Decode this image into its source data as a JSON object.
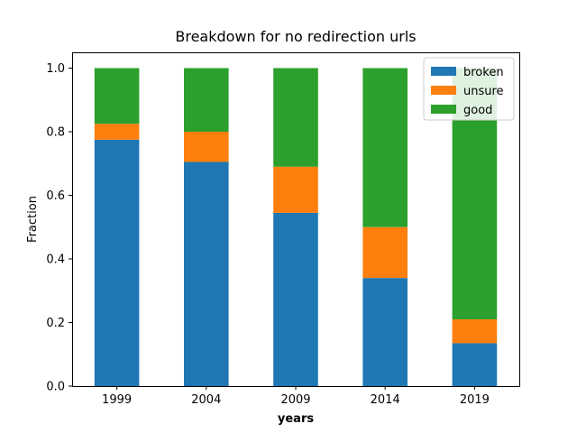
{
  "chart_data": {
    "type": "bar",
    "stacked": true,
    "title": "Breakdown for no redirection urls",
    "xlabel": "years",
    "ylabel": "Fraction",
    "categories": [
      "1999",
      "2004",
      "2009",
      "2014",
      "2019"
    ],
    "series": [
      {
        "name": "broken",
        "color": "#1f77b4",
        "values": [
          0.775,
          0.705,
          0.545,
          0.34,
          0.135
        ]
      },
      {
        "name": "unsure",
        "color": "#ff7f0e",
        "values": [
          0.05,
          0.095,
          0.145,
          0.16,
          0.075
        ]
      },
      {
        "name": "good",
        "color": "#2ca02c",
        "values": [
          0.175,
          0.2,
          0.31,
          0.5,
          0.79
        ]
      }
    ],
    "ylim": [
      0,
      1.0
    ],
    "yticks": [
      "0.0",
      "0.2",
      "0.4",
      "0.6",
      "0.8",
      "1.0"
    ],
    "legend_position": "top-right",
    "grid": false
  }
}
